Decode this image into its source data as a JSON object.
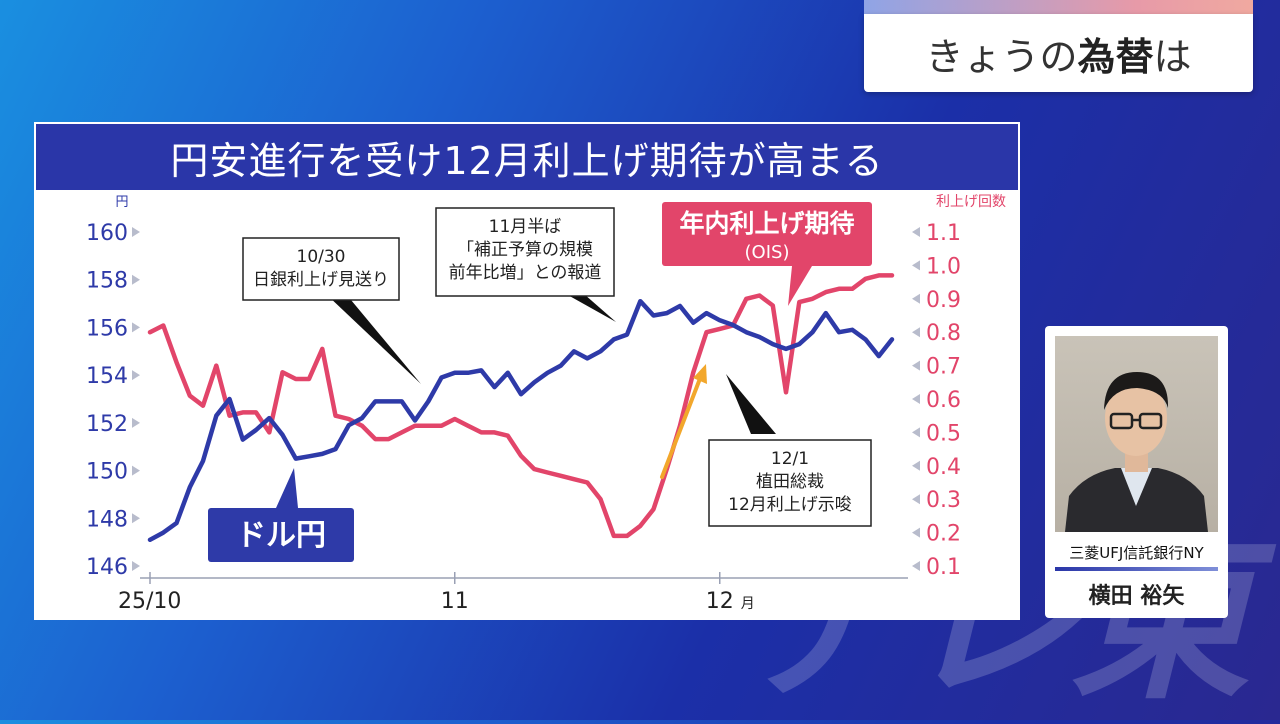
{
  "topic": {
    "prefix": "きょうの",
    "strong": "為替",
    "suffix": "は"
  },
  "watermark": "テレ東",
  "speaker": {
    "affiliation": "三菱UFJ信託銀行NY",
    "name": "横田 裕矢"
  },
  "colors": {
    "usdjpy": "#2e3aa8",
    "ois": "#e2456a",
    "title_bg": "#2a36a8",
    "arrow": "#f2a72c"
  },
  "chart_data": {
    "type": "line",
    "title": "円安進行を受け12月利上げ期待が高まる",
    "left_axis": {
      "unit": "円",
      "range": [
        146,
        160
      ],
      "ticks": [
        "146",
        "148",
        "150",
        "152",
        "154",
        "156",
        "158",
        "160"
      ]
    },
    "right_axis": {
      "unit": "利上げ回数",
      "range": [
        0.1,
        1.1
      ],
      "ticks": [
        "0.1",
        "0.2",
        "0.3",
        "0.4",
        "0.5",
        "0.6",
        "0.7",
        "0.8",
        "0.9",
        "1.0",
        "1.1"
      ]
    },
    "x_ticks": [
      {
        "label": "25/10",
        "index": 0
      },
      {
        "label": "11",
        "index": 23
      },
      {
        "label": "12",
        "suffix": "月",
        "index": 43
      }
    ],
    "series": [
      {
        "name": "ドル円",
        "axis": "left",
        "values": [
          147.1,
          147.4,
          147.8,
          149.3,
          150.4,
          152.3,
          153.0,
          151.3,
          151.7,
          152.2,
          151.5,
          150.5,
          150.6,
          150.7,
          150.9,
          151.9,
          152.2,
          152.9,
          152.9,
          152.9,
          152.1,
          152.9,
          153.9,
          154.1,
          154.1,
          154.2,
          153.5,
          154.1,
          153.2,
          153.7,
          154.1,
          154.4,
          155.0,
          154.7,
          155.0,
          155.5,
          155.7,
          157.1,
          156.5,
          156.6,
          156.9,
          156.2,
          156.6,
          156.3,
          156.1,
          155.8,
          155.6,
          155.3,
          155.1,
          155.3,
          155.8,
          156.6,
          155.8,
          155.9,
          155.5,
          154.8,
          155.5
        ]
      },
      {
        "name": "年内利上げ期待",
        "sublabel": "(OIS)",
        "axis": "right",
        "values": [
          0.8,
          0.82,
          0.71,
          0.61,
          0.58,
          0.7,
          0.55,
          0.56,
          0.56,
          0.5,
          0.68,
          0.66,
          0.66,
          0.75,
          0.55,
          0.54,
          0.52,
          0.48,
          0.48,
          0.5,
          0.52,
          0.52,
          0.52,
          0.54,
          0.52,
          0.5,
          0.5,
          0.49,
          0.43,
          0.39,
          0.38,
          0.37,
          0.36,
          0.35,
          0.3,
          0.19,
          0.19,
          0.22,
          0.27,
          0.39,
          0.52,
          0.68,
          0.8,
          0.81,
          0.82,
          0.9,
          0.91,
          0.88,
          0.62,
          0.89,
          0.9,
          0.92,
          0.93,
          0.93,
          0.96,
          0.97,
          0.97
        ]
      }
    ],
    "annotations": [
      {
        "label": "10/30\n日銀利上げ見送り"
      },
      {
        "label": "11月半ば\n「補正予算の規模\n前年比増」との報道"
      },
      {
        "label": "12/1\n植田総裁\n12月利上げ示唆"
      }
    ]
  }
}
